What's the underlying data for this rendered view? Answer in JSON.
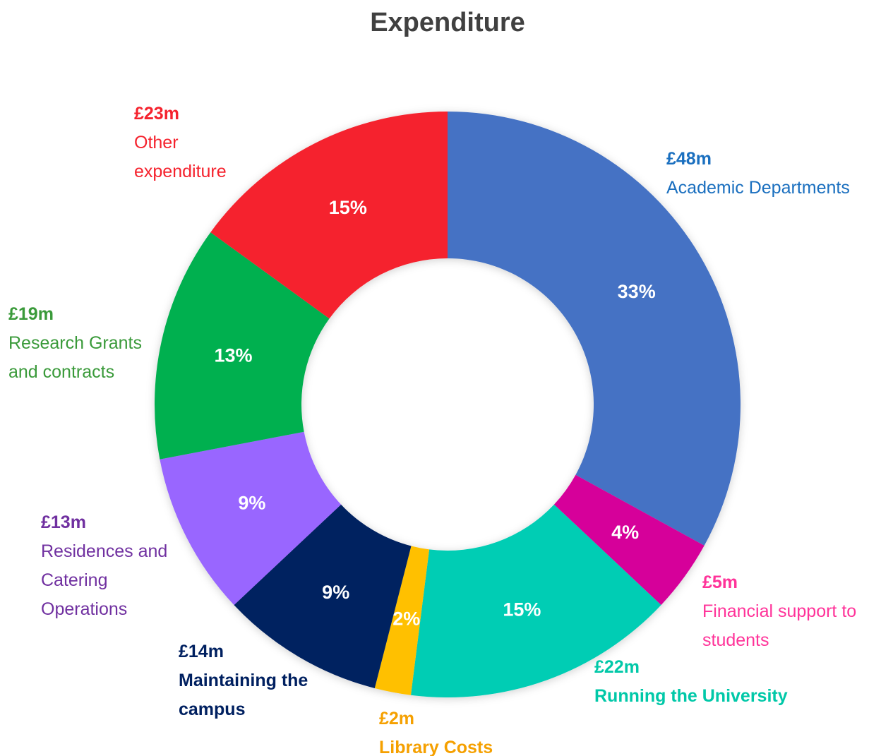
{
  "chart_data": {
    "type": "donut",
    "title": "Expenditure",
    "categories": [
      "Academic Departments",
      "Financial support to students",
      "Running the University",
      "Library Costs",
      "Maintaining the campus",
      "Residences and Catering Operations",
      "Research Grants and contracts",
      "Other expenditure"
    ],
    "values": [
      33,
      4,
      15,
      2,
      9,
      9,
      13,
      15
    ],
    "value_labels": [
      "33%",
      "4%",
      "15%",
      "2%",
      "9%",
      "9%",
      "13%",
      "15%"
    ],
    "amounts": [
      "£48m",
      "£5m",
      "£22m",
      "£2m",
      "£14m",
      "£13m",
      "£19m",
      "£23m"
    ],
    "colors": [
      "#4472c4",
      "#d6009a",
      "#00cdb4",
      "#ffc000",
      "#002060",
      "#9966ff",
      "#00b050",
      "#f5222d"
    ],
    "label_colors": [
      "#1a6fbf",
      "#ff3399",
      "#00c8a8",
      "#f5a000",
      "#002060",
      "#7030a0",
      "#3a9a3a",
      "#f5222d"
    ]
  }
}
